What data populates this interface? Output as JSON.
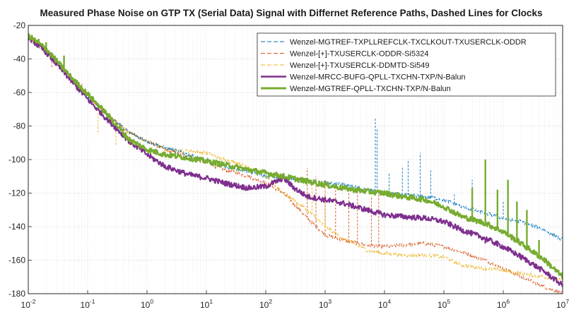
{
  "chart_data": {
    "type": "line",
    "title": "Measured Phase Noise on GTP TX (Serial Data) Signal with Differnet Reference Paths, Dashed Lines for Clocks",
    "xlabel": "",
    "ylabel": "",
    "x_scale": "log",
    "xlim": [
      0.01,
      10000000
    ],
    "ylim": [
      -180,
      -20
    ],
    "x_ticks": [
      {
        "base": "10",
        "exp": "-2",
        "value": 0.01
      },
      {
        "base": "10",
        "exp": "-1",
        "value": 0.1
      },
      {
        "base": "10",
        "exp": "0",
        "value": 1
      },
      {
        "base": "10",
        "exp": "1",
        "value": 10
      },
      {
        "base": "10",
        "exp": "2",
        "value": 100
      },
      {
        "base": "10",
        "exp": "3",
        "value": 1000
      },
      {
        "base": "10",
        "exp": "4",
        "value": 10000
      },
      {
        "base": "10",
        "exp": "5",
        "value": 100000
      },
      {
        "base": "10",
        "exp": "6",
        "value": 1000000
      },
      {
        "base": "10",
        "exp": "7",
        "value": 10000000
      }
    ],
    "y_ticks": [
      "-20",
      "-40",
      "-60",
      "-80",
      "-100",
      "-120",
      "-140",
      "-160",
      "-180"
    ],
    "grid": true,
    "minor_grid_x": true,
    "legend_position": "top-right",
    "series": [
      {
        "name": "Wenzel-MGTREF-TXPLLREFCLK-TXCLKOUT-TXUSERCLK-ODDR",
        "color": "#0072BD",
        "style": "dashed",
        "x": [
          0.01,
          0.02,
          0.05,
          0.1,
          0.2,
          0.5,
          1,
          2,
          5,
          10,
          20,
          50,
          100,
          200,
          500,
          1000,
          2000,
          5000,
          10000,
          20000,
          50000,
          100000,
          200000,
          500000,
          1000000,
          2000000,
          5000000,
          10000000
        ],
        "y": [
          -28,
          -36,
          -50,
          -62,
          -72,
          -84,
          -89,
          -93,
          -97,
          -101,
          -104,
          -107,
          -110,
          -111,
          -113,
          -114,
          -115,
          -118,
          -120,
          -121,
          -122,
          -124,
          -128,
          -132,
          -135,
          -137,
          -142,
          -148
        ],
        "spikes": [
          {
            "x": 7000,
            "y": -75
          },
          {
            "x": 7500,
            "y": -82
          },
          {
            "x": 12000,
            "y": -108
          },
          {
            "x": 20000,
            "y": -104
          },
          {
            "x": 25000,
            "y": -100
          },
          {
            "x": 40000,
            "y": -96
          },
          {
            "x": 60000,
            "y": -106
          },
          {
            "x": 150000,
            "y": -120
          },
          {
            "x": 300000,
            "y": -112
          },
          {
            "x": 500000,
            "y": -120
          },
          {
            "x": 1000000,
            "y": -125
          }
        ]
      },
      {
        "name": "Wenzel-[+]-TXUSERCLK-ODDR-Si5324",
        "color": "#D95319",
        "style": "dashed",
        "x": [
          0.01,
          0.02,
          0.05,
          0.1,
          0.2,
          0.5,
          1,
          2,
          5,
          10,
          20,
          50,
          100,
          200,
          500,
          1000,
          2000,
          5000,
          10000,
          20000,
          50000,
          100000,
          200000,
          500000,
          1000000,
          2000000,
          5000000,
          10000000
        ],
        "y": [
          -28,
          -36,
          -50,
          -62,
          -72,
          -84,
          -89,
          -94,
          -98,
          -102,
          -106,
          -110,
          -114,
          -120,
          -135,
          -145,
          -148,
          -151,
          -152,
          -151,
          -150,
          -152,
          -155,
          -160,
          -165,
          -170,
          -176,
          -180
        ],
        "spikes": [
          {
            "x": 0.025,
            "y": -45
          },
          {
            "x": 0.05,
            "y": -48
          },
          {
            "x": 0.08,
            "y": -55
          },
          {
            "x": 500,
            "y": -105
          },
          {
            "x": 700,
            "y": -110
          },
          {
            "x": 1000,
            "y": -112
          },
          {
            "x": 1500,
            "y": -115
          },
          {
            "x": 2500,
            "y": -120
          },
          {
            "x": 3500,
            "y": -118
          },
          {
            "x": 6000,
            "y": -122
          },
          {
            "x": 8000,
            "y": -118
          }
        ]
      },
      {
        "name": "Wenzel-[+]-TXUSERCLK-DDMTD-Si549",
        "color": "#EDB120",
        "style": "dashed",
        "x": [
          0.01,
          0.02,
          0.05,
          0.1,
          0.2,
          0.5,
          1,
          2,
          5,
          10,
          20,
          50,
          100,
          200,
          500,
          1000,
          2000,
          5000,
          10000,
          20000,
          50000,
          100000,
          200000,
          500000,
          1000000,
          2000000,
          5000000,
          10000000
        ],
        "y": [
          -28,
          -36,
          -50,
          -62,
          -72,
          -84,
          -89,
          -94,
          -95,
          -96,
          -100,
          -104,
          -110,
          -120,
          -130,
          -140,
          -147,
          -154,
          -156,
          -157,
          -157,
          -158,
          -163,
          -165,
          -166,
          -168,
          -170,
          -172
        ],
        "spikes": [
          {
            "x": 0.15,
            "y": -85
          },
          {
            "x": 0.3,
            "y": -92
          },
          {
            "x": 0.5,
            "y": -92
          },
          {
            "x": 600,
            "y": -115
          },
          {
            "x": 1000,
            "y": -122
          }
        ]
      },
      {
        "name": "Wenzel-MRCC-BUFG-QPLL-TXCHN-TXP/N-Balun",
        "color": "#7E2F8E",
        "style": "solid",
        "x": [
          0.01,
          0.02,
          0.05,
          0.1,
          0.2,
          0.5,
          1,
          2,
          5,
          10,
          20,
          50,
          100,
          200,
          300,
          500,
          1000,
          2000,
          5000,
          10000,
          20000,
          50000,
          100000,
          200000,
          500000,
          1000000,
          2000000,
          5000000,
          10000000
        ],
        "y": [
          -27,
          -36,
          -52,
          -64,
          -75,
          -89,
          -97,
          -104,
          -109,
          -111,
          -114,
          -117,
          -116,
          -111,
          -117,
          -122,
          -124,
          -126,
          -130,
          -133,
          -134,
          -135,
          -137,
          -142,
          -147,
          -152,
          -158,
          -167,
          -175
        ],
        "spikes": [
          {
            "x": 300000,
            "y": -145
          },
          {
            "x": 500000,
            "y": -150
          },
          {
            "x": 800000,
            "y": -152
          },
          {
            "x": 1200000,
            "y": -155
          },
          {
            "x": 2000000,
            "y": -160
          },
          {
            "x": 3000000,
            "y": -163
          }
        ]
      },
      {
        "name": "Wenzel-MGTREF-QPLL-TXCHN-TXP/N-Balun",
        "color": "#77AC30",
        "style": "solid",
        "x": [
          0.01,
          0.02,
          0.05,
          0.1,
          0.2,
          0.5,
          1,
          2,
          5,
          10,
          20,
          50,
          100,
          200,
          500,
          1000,
          2000,
          5000,
          10000,
          20000,
          50000,
          100000,
          200000,
          500000,
          1000000,
          2000000,
          5000000,
          10000000
        ],
        "y": [
          -26,
          -34,
          -50,
          -61,
          -72,
          -88,
          -94,
          -97,
          -99,
          -101,
          -103,
          -106,
          -108,
          -110,
          -113,
          -115,
          -117,
          -119,
          -120,
          -122,
          -124,
          -128,
          -134,
          -138,
          -143,
          -150,
          -160,
          -170
        ],
        "spikes": [
          {
            "x": 0.015,
            "y": -28
          },
          {
            "x": 0.02,
            "y": -30
          },
          {
            "x": 0.04,
            "y": -38
          },
          {
            "x": 300000,
            "y": -117
          },
          {
            "x": 500000,
            "y": -100
          },
          {
            "x": 800000,
            "y": -118
          },
          {
            "x": 1200000,
            "y": -112
          },
          {
            "x": 1700000,
            "y": -125
          },
          {
            "x": 2500000,
            "y": -130
          },
          {
            "x": 4000000,
            "y": -148
          }
        ]
      }
    ]
  }
}
